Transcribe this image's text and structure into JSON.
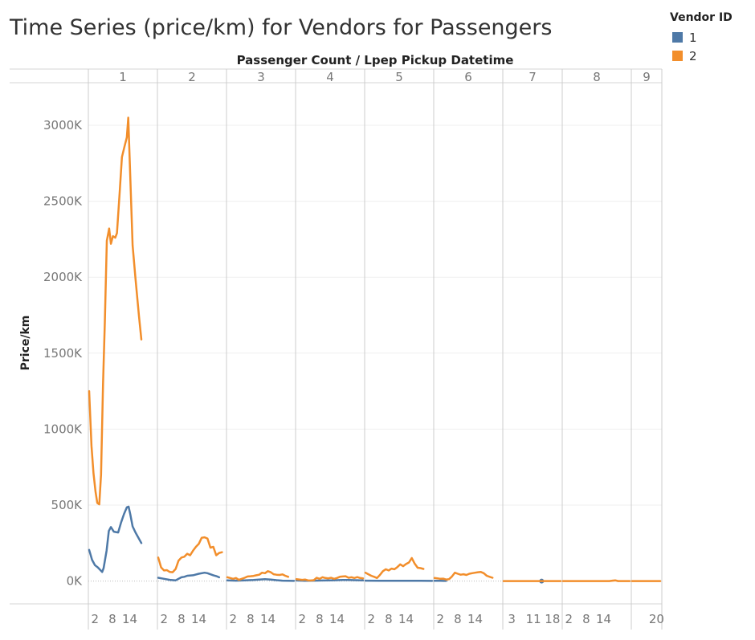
{
  "chart_data": {
    "type": "line",
    "title": "Time Series (price/km) for Vendors for Passengers",
    "column_header": "Passenger Count  /  Lpep Pickup Datetime",
    "ylabel": "Price/km",
    "ylim": [
      -150,
      3280
    ],
    "y_ticks": [
      0,
      500,
      1000,
      1500,
      2000,
      2500,
      3000
    ],
    "y_tick_labels": [
      "0K",
      "500K",
      "1000K",
      "1500K",
      "2000K",
      "2500K",
      "3000K"
    ],
    "panels": [
      {
        "label": "1",
        "hours": [
          0,
          23
        ],
        "tick_labels": [
          "2",
          "8",
          "14"
        ],
        "tick_hours": [
          2,
          8,
          14
        ]
      },
      {
        "label": "2",
        "hours": [
          0,
          23
        ],
        "tick_labels": [
          "2",
          "8",
          "14"
        ],
        "tick_hours": [
          2,
          8,
          14
        ]
      },
      {
        "label": "3",
        "hours": [
          0,
          23
        ],
        "tick_labels": [
          "2",
          "8",
          "14"
        ],
        "tick_hours": [
          2,
          8,
          14
        ]
      },
      {
        "label": "4",
        "hours": [
          0,
          23
        ],
        "tick_labels": [
          "2",
          "8",
          "14"
        ],
        "tick_hours": [
          2,
          8,
          14
        ]
      },
      {
        "label": "5",
        "hours": [
          0,
          23
        ],
        "tick_labels": [
          "2",
          "8",
          "14"
        ],
        "tick_hours": [
          2,
          8,
          14
        ]
      },
      {
        "label": "6",
        "hours": [
          0,
          23
        ],
        "tick_labels": [
          "2",
          "8",
          "14"
        ],
        "tick_hours": [
          2,
          8,
          14
        ]
      },
      {
        "label": "7",
        "hours": [
          0,
          21
        ],
        "tick_labels": [
          "3",
          "11",
          "18"
        ],
        "tick_hours": [
          3,
          11,
          18
        ]
      },
      {
        "label": "8",
        "hours": [
          0,
          23
        ],
        "tick_labels": [
          "2",
          "8",
          "14"
        ],
        "tick_hours": [
          2,
          8,
          14
        ]
      },
      {
        "label": "9",
        "hours": [
          0,
          23
        ],
        "tick_labels": [
          "20"
        ],
        "tick_hours": [
          20
        ]
      }
    ],
    "series": [
      {
        "name": "1",
        "color": "#4e79a7",
        "panels": [
          [
            [
              0,
              205
            ],
            [
              1,
              140
            ],
            [
              2,
              105
            ],
            [
              3,
              90
            ],
            [
              4,
              70
            ],
            [
              4.5,
              60
            ],
            [
              5,
              85
            ],
            [
              6,
              200
            ],
            [
              6.8,
              330
            ],
            [
              7.5,
              355
            ],
            [
              8.5,
              325
            ],
            [
              10,
              320
            ],
            [
              11,
              385
            ],
            [
              12,
              440
            ],
            [
              13,
              485
            ],
            [
              13.6,
              490
            ],
            [
              14.2,
              440
            ],
            [
              15,
              360
            ],
            [
              16,
              320
            ],
            [
              18,
              250
            ]
          ],
          [
            [
              0,
              22
            ],
            [
              2,
              15
            ],
            [
              4,
              8
            ],
            [
              6,
              5
            ],
            [
              8,
              25
            ],
            [
              9,
              28
            ],
            [
              10,
              35
            ],
            [
              12,
              38
            ],
            [
              14,
              48
            ],
            [
              16,
              55
            ],
            [
              17,
              52
            ],
            [
              19,
              38
            ],
            [
              20,
              33
            ],
            [
              21,
              25
            ]
          ],
          [
            [
              0,
              5
            ],
            [
              3,
              3
            ],
            [
              6,
              5
            ],
            [
              9,
              7
            ],
            [
              11,
              10
            ],
            [
              13,
              12
            ],
            [
              15,
              10
            ],
            [
              17,
              6
            ],
            [
              19,
              3
            ],
            [
              21,
              2
            ],
            [
              23,
              1
            ]
          ],
          [
            [
              0,
              4
            ],
            [
              3,
              2
            ],
            [
              6,
              3
            ],
            [
              9,
              4
            ],
            [
              12,
              5
            ],
            [
              14,
              6
            ],
            [
              16,
              7
            ],
            [
              18,
              7
            ],
            [
              20,
              6
            ],
            [
              23,
              5
            ]
          ],
          [
            [
              0,
              3
            ],
            [
              5,
              2
            ],
            [
              10,
              2
            ],
            [
              15,
              2
            ],
            [
              19,
              2
            ],
            [
              23,
              1
            ]
          ],
          [
            [
              0,
              2
            ],
            [
              2,
              2
            ],
            [
              3,
              1
            ],
            [
              4,
              1
            ]
          ],
          [
            [
              14,
              0
            ]
          ]
        ]
      },
      {
        "name": "2",
        "color": "#f28e2b",
        "panels": [
          [
            [
              0,
              1250
            ],
            [
              0.8,
              890
            ],
            [
              1.5,
              710
            ],
            [
              2.2,
              590
            ],
            [
              2.8,
              515
            ],
            [
              3.5,
              505
            ],
            [
              4.1,
              700
            ],
            [
              4.8,
              1300
            ],
            [
              5.4,
              1700
            ],
            [
              6.1,
              2240
            ],
            [
              6.9,
              2320
            ],
            [
              7.5,
              2220
            ],
            [
              8.2,
              2270
            ],
            [
              9,
              2260
            ],
            [
              9.6,
              2290
            ],
            [
              10.5,
              2550
            ],
            [
              11.3,
              2790
            ],
            [
              12.2,
              2860
            ],
            [
              13,
              2920
            ],
            [
              13.5,
              3050
            ],
            [
              14.2,
              2660
            ],
            [
              15,
              2210
            ],
            [
              16,
              1990
            ],
            [
              17.2,
              1740
            ],
            [
              18,
              1590
            ]
          ],
          [
            [
              0,
              155
            ],
            [
              1,
              90
            ],
            [
              2,
              70
            ],
            [
              3,
              72
            ],
            [
              4,
              60
            ],
            [
              5,
              58
            ],
            [
              6,
              80
            ],
            [
              7,
              135
            ],
            [
              8,
              155
            ],
            [
              9,
              160
            ],
            [
              10,
              180
            ],
            [
              11,
              170
            ],
            [
              12,
              200
            ],
            [
              13,
              225
            ],
            [
              14,
              245
            ],
            [
              15,
              285
            ],
            [
              16,
              288
            ],
            [
              17,
              280
            ],
            [
              18,
              220
            ],
            [
              19,
              225
            ],
            [
              20,
              170
            ],
            [
              21,
              185
            ],
            [
              22,
              190
            ]
          ],
          [
            [
              0,
              25
            ],
            [
              1,
              20
            ],
            [
              2,
              15
            ],
            [
              3,
              20
            ],
            [
              4,
              8
            ],
            [
              5,
              15
            ],
            [
              6,
              22
            ],
            [
              7,
              30
            ],
            [
              8,
              32
            ],
            [
              9,
              34
            ],
            [
              10,
              38
            ],
            [
              11,
              42
            ],
            [
              12,
              55
            ],
            [
              13,
              52
            ],
            [
              14,
              65
            ],
            [
              15,
              58
            ],
            [
              16,
              45
            ],
            [
              17,
              42
            ],
            [
              18,
              40
            ],
            [
              19,
              44
            ],
            [
              20,
              35
            ],
            [
              21,
              28
            ]
          ],
          [
            [
              0,
              12
            ],
            [
              2,
              8
            ],
            [
              3,
              10
            ],
            [
              4,
              5
            ],
            [
              5,
              4
            ],
            [
              6,
              6
            ],
            [
              7,
              22
            ],
            [
              8,
              15
            ],
            [
              9,
              25
            ],
            [
              10,
              20
            ],
            [
              11,
              18
            ],
            [
              12,
              22
            ],
            [
              13,
              15
            ],
            [
              14,
              20
            ],
            [
              15,
              28
            ],
            [
              16,
              30
            ],
            [
              17,
              32
            ],
            [
              18,
              22
            ],
            [
              19,
              25
            ],
            [
              20,
              20
            ],
            [
              21,
              26
            ],
            [
              22,
              20
            ],
            [
              23,
              18
            ]
          ],
          [
            [
              0,
              55
            ],
            [
              1,
              45
            ],
            [
              2,
              35
            ],
            [
              3,
              28
            ],
            [
              4,
              20
            ],
            [
              5,
              40
            ],
            [
              6,
              65
            ],
            [
              7,
              78
            ],
            [
              8,
              70
            ],
            [
              9,
              82
            ],
            [
              10,
              78
            ],
            [
              11,
              92
            ],
            [
              12,
              110
            ],
            [
              13,
              98
            ],
            [
              14,
              112
            ],
            [
              15,
              122
            ],
            [
              16,
              152
            ],
            [
              17,
              115
            ],
            [
              18,
              88
            ],
            [
              19,
              85
            ],
            [
              20,
              80
            ]
          ],
          [
            [
              0,
              20
            ],
            [
              1,
              18
            ],
            [
              2,
              15
            ],
            [
              3,
              16
            ],
            [
              4,
              10
            ],
            [
              5,
              12
            ],
            [
              6,
              30
            ],
            [
              7,
              55
            ],
            [
              8,
              48
            ],
            [
              9,
              42
            ],
            [
              10,
              45
            ],
            [
              11,
              40
            ],
            [
              12,
              48
            ],
            [
              13,
              52
            ],
            [
              14,
              55
            ],
            [
              15,
              58
            ],
            [
              16,
              60
            ],
            [
              17,
              52
            ],
            [
              18,
              35
            ],
            [
              19,
              28
            ],
            [
              20,
              22
            ]
          ],
          [
            [
              0,
              0
            ],
            [
              3,
              0
            ],
            [
              6,
              0
            ],
            [
              9,
              0
            ],
            [
              12,
              0
            ],
            [
              15,
              0
            ],
            [
              18,
              0
            ],
            [
              21,
              0
            ]
          ],
          [
            [
              0,
              0
            ],
            [
              4,
              0
            ],
            [
              8,
              0
            ],
            [
              12,
              0
            ],
            [
              16,
              0
            ],
            [
              18,
              5
            ],
            [
              19,
              0
            ],
            [
              23,
              0
            ]
          ],
          [
            [
              0,
              0
            ],
            [
              5,
              0
            ],
            [
              10,
              0
            ],
            [
              15,
              0
            ],
            [
              20,
              0
            ],
            [
              23,
              0
            ]
          ]
        ]
      }
    ],
    "legend": {
      "title": "Vendor ID",
      "items": [
        "1",
        "2"
      ],
      "position": "top-right"
    }
  }
}
